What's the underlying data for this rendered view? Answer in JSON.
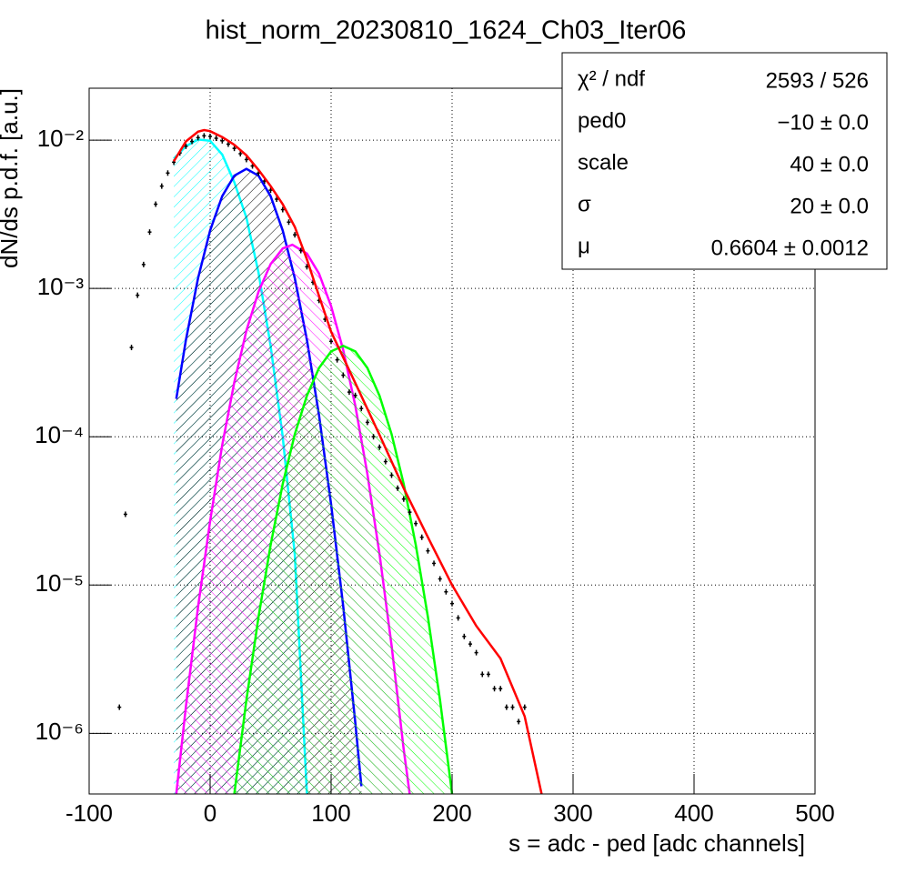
{
  "chart_data": {
    "type": "line",
    "title": "hist_norm_20230810_1624_Ch03_Iter06",
    "x_label": "s = adc - ped [adc channels]",
    "y_label": "dN/ds p.d.f. [a.u.]",
    "log_y": true,
    "grid": true,
    "xlim": [
      -100,
      500
    ],
    "xticks": [
      -100,
      0,
      100,
      200,
      300,
      400,
      500
    ],
    "ylim": [
      3.9e-07,
      0.0224
    ],
    "yticks": [
      {
        "value": 1e-06,
        "label": "10⁻⁶"
      },
      {
        "value": 1e-05,
        "label": "10⁻⁵"
      },
      {
        "value": 0.0001,
        "label": "10⁻⁴"
      },
      {
        "value": 0.001,
        "label": "10⁻³"
      },
      {
        "value": 0.01,
        "label": "10⁻²"
      }
    ],
    "series": [
      {
        "color": "#00ffff",
        "fill": true,
        "hatch": "/",
        "x": [
          -30,
          -20,
          -10,
          0,
          10,
          20,
          30,
          40,
          50,
          60,
          70,
          80
        ],
        "values": [
          0.0075,
          0.0091,
          0.0101,
          0.0099,
          0.008,
          0.0052,
          0.003,
          0.00128,
          0.00041,
          0.0001,
          1.6e-05,
          3.9e-07
        ]
      },
      {
        "color": "#0000ff",
        "fill": true,
        "hatch": "/",
        "x": [
          -28,
          -20,
          -10,
          0,
          10,
          20,
          30,
          40,
          50,
          60,
          70,
          80,
          90,
          100,
          110,
          120,
          125
        ],
        "values": [
          0.00018,
          0.00045,
          0.00117,
          0.00246,
          0.00419,
          0.00576,
          0.0064,
          0.00576,
          0.00419,
          0.00246,
          0.00117,
          0.00045,
          0.00014,
          3.5e-05,
          7.2e-06,
          1.18e-06,
          4.4e-07
        ]
      },
      {
        "color": "#ff00ff",
        "fill": true,
        "hatch": "\\",
        "x": [
          -28,
          -20,
          -10,
          0,
          10,
          20,
          30,
          40,
          50,
          60,
          68,
          80,
          90,
          100,
          110,
          120,
          130,
          140,
          150,
          160,
          165
        ],
        "values": [
          3.9e-07,
          1.52e-06,
          7.1e-06,
          2.7e-05,
          8.8e-05,
          0.000233,
          0.00052,
          0.00095,
          0.00146,
          0.00186,
          0.00197,
          0.00172,
          0.00126,
          0.00076,
          0.000385,
          0.000162,
          5.6e-05,
          1.62e-05,
          3.9e-06,
          7.8e-07,
          3.9e-07
        ]
      },
      {
        "color": "#00ff00",
        "fill": true,
        "hatch": "\\",
        "x": [
          20,
          30,
          40,
          50,
          60,
          70,
          80,
          90,
          100,
          110,
          120,
          130,
          140,
          150,
          160,
          170,
          180,
          190,
          200
        ],
        "values": [
          3.9e-07,
          1.68e-06,
          6.1e-06,
          1.86e-05,
          4.8e-05,
          0.000104,
          0.000189,
          0.000291,
          0.000376,
          0.00041,
          0.000376,
          0.000291,
          0.000189,
          0.000104,
          4.8e-05,
          1.86e-05,
          6.1e-06,
          1.68e-06,
          3.9e-07
        ]
      },
      {
        "color": "#000000",
        "marker": true,
        "x": [
          -75,
          -70,
          -65,
          -60,
          -55,
          -50,
          -45,
          -40,
          -35,
          -30,
          -25,
          -20,
          -15,
          -10,
          -5,
          0,
          5,
          10,
          15,
          20,
          25,
          30,
          35,
          40,
          45,
          50,
          55,
          60,
          65,
          70,
          75,
          80,
          85,
          90,
          95,
          100,
          105,
          110,
          115,
          120,
          125,
          130,
          135,
          140,
          145,
          150,
          155,
          160,
          165,
          170,
          175,
          180,
          185,
          190,
          195,
          200,
          205,
          210,
          215,
          220,
          225,
          230,
          235,
          240,
          245,
          250,
          255,
          260
        ],
        "values": [
          1.5e-06,
          3e-05,
          0.0004,
          0.0009,
          0.00145,
          0.0024,
          0.0037,
          0.0049,
          0.006,
          0.0071,
          0.0082,
          0.0091,
          0.0098,
          0.0104,
          0.0107,
          0.0106,
          0.0103,
          0.0099,
          0.0094,
          0.0088,
          0.0081,
          0.0074,
          0.0067,
          0.006,
          0.0053,
          0.0046,
          0.004,
          0.0034,
          0.0028,
          0.0023,
          0.0018,
          0.0014,
          0.0011,
          0.00083,
          0.00062,
          0.00044,
          0.00033,
          0.00026,
          0.0002,
          0.00019,
          0.000155,
          0.000125,
          0.0001,
          8.5e-05,
          6.8e-05,
          5.5e-05,
          4.5e-05,
          3.8e-05,
          3.1e-05,
          2.6e-05,
          2.1e-05,
          1.7e-05,
          1.4e-05,
          1.1e-05,
          9e-06,
          7.5e-06,
          6e-06,
          4.5e-06,
          4e-06,
          3.5e-06,
          2.5e-06,
          2.5e-06,
          2e-06,
          2e-06,
          1.5e-06,
          1.5e-06,
          1.2e-06,
          1.5e-06
        ]
      },
      {
        "color": "#ff0000",
        "x": [
          -30,
          -20,
          -10,
          -5,
          0,
          10,
          20,
          30,
          40,
          50,
          60,
          70,
          80,
          90,
          100,
          120,
          140,
          160,
          180,
          200,
          220,
          240,
          260,
          274
        ],
        "values": [
          0.0072,
          0.0098,
          0.0114,
          0.0117,
          0.0115,
          0.0105,
          0.0093,
          0.0079,
          0.0063,
          0.0049,
          0.0037,
          0.0026,
          0.00157,
          0.00089,
          0.00051,
          0.00023,
          0.000103,
          4.5e-05,
          2.1e-05,
          1e-05,
          5.3e-06,
          3.2e-06,
          1.3e-06,
          3.9e-07
        ]
      }
    ],
    "stats": [
      {
        "name": "χ² / ndf",
        "value": "2593 / 526"
      },
      {
        "name": "ped0",
        "value": "−10 ± 0.0"
      },
      {
        "name": "scale",
        "value": "40 ± 0.0"
      },
      {
        "name": "σ",
        "value": "20 ± 0.0"
      },
      {
        "name": "μ",
        "value": "0.6604  ± 0.0012"
      }
    ]
  }
}
